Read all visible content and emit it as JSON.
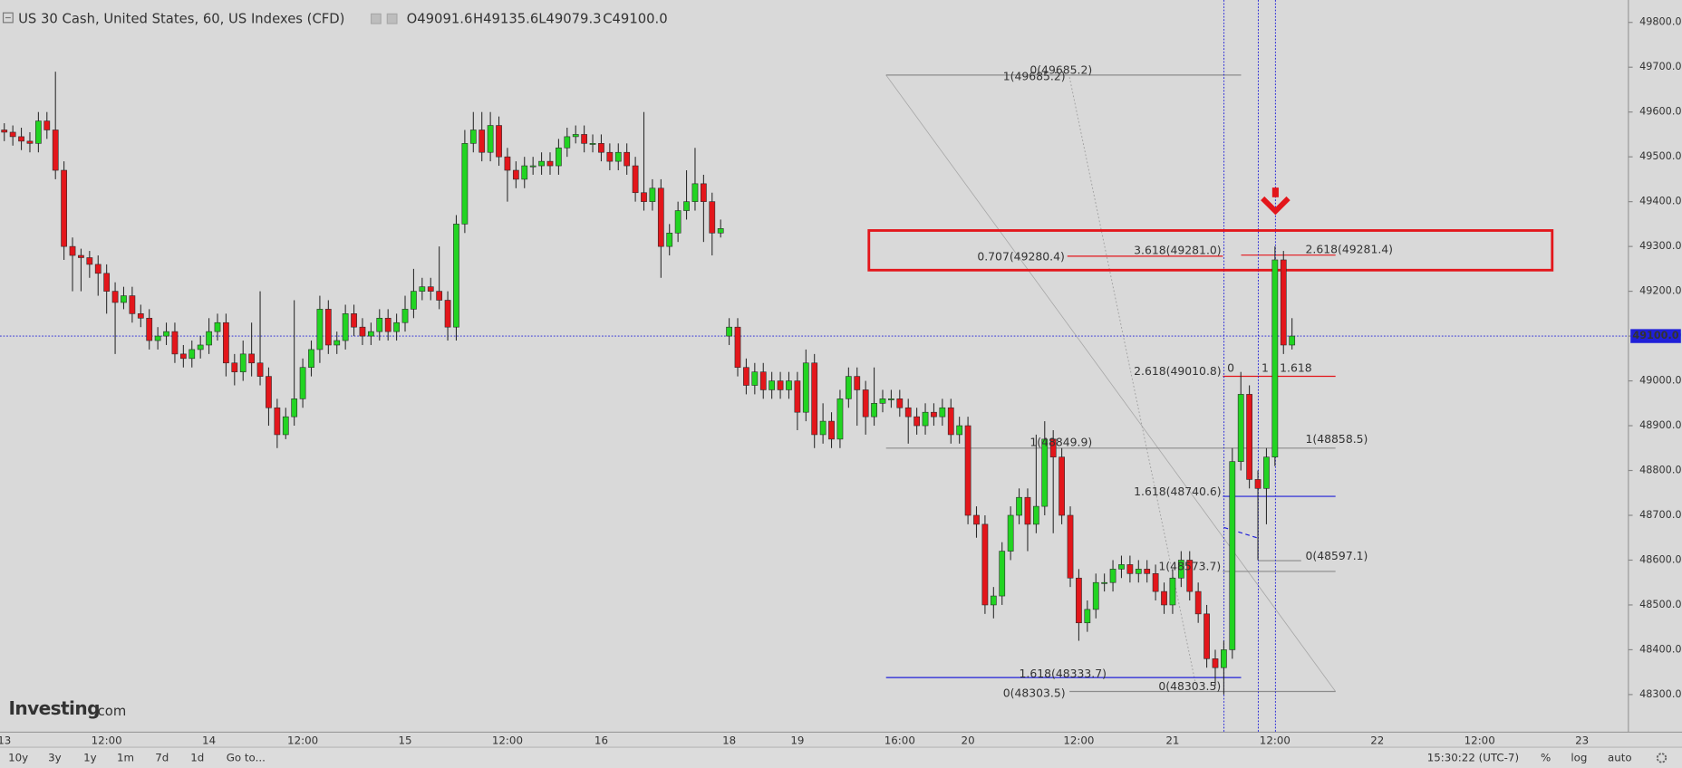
{
  "header": {
    "title": "US 30 Cash, United States, 60, US Indexes (CFD)",
    "ohlc": [
      "O49091.6",
      "H49135.6",
      "L49079.3",
      "C49100.0"
    ]
  },
  "logo": {
    "name": "Investing",
    "suffix": ".com"
  },
  "toolbar": {
    "ranges": [
      "10y",
      "3y",
      "1y",
      "1m",
      "7d",
      "1d"
    ],
    "goto": "Go to...",
    "time": "15:30:22 (UTC-7)",
    "options": [
      "%",
      "log",
      "auto"
    ]
  },
  "chart_data": {
    "type": "candlestick",
    "up_color": "#22d422",
    "down_color": "#e3161b",
    "categories": [
      "13",
      null,
      null,
      null,
      null,
      null,
      null,
      null,
      null,
      null,
      null,
      null,
      "12:00",
      null,
      null,
      null,
      null,
      null,
      null,
      null,
      null,
      null,
      null,
      null,
      "14",
      null,
      null,
      null,
      null,
      null,
      null,
      null,
      null,
      null,
      null,
      "12:00",
      null,
      null,
      null,
      null,
      null,
      null,
      null,
      null,
      null,
      null,
      null,
      "15",
      null,
      null,
      null,
      null,
      null,
      null,
      null,
      null,
      null,
      null,
      null,
      "12:00",
      null,
      null,
      null,
      null,
      null,
      null,
      null,
      null,
      null,
      null,
      "16",
      null,
      null,
      null,
      null,
      null,
      null,
      null,
      null,
      null,
      null,
      null,
      null,
      null,
      null,
      "18",
      null,
      null,
      null,
      null,
      null,
      null,
      null,
      "19",
      null,
      null,
      null,
      null,
      null,
      null,
      null,
      null,
      null,
      null,
      null,
      "16:00",
      null,
      null,
      null,
      null,
      null,
      null,
      null,
      "20",
      null,
      null,
      null,
      null,
      null,
      null,
      null,
      null,
      null,
      null,
      null,
      null,
      "12:00",
      null,
      null,
      null,
      null,
      null,
      null,
      null,
      null,
      null,
      null,
      "21",
      null,
      null,
      null,
      null,
      null,
      null,
      null,
      null,
      null,
      null,
      null,
      "12:00",
      null,
      null,
      null,
      null,
      null,
      null,
      null,
      null,
      null,
      null,
      null,
      "22",
      null,
      null,
      null,
      null,
      null,
      null,
      null,
      null,
      null,
      null,
      null,
      "12:00",
      null,
      null,
      null,
      null,
      null,
      null,
      null,
      null,
      null,
      null,
      null,
      "23"
    ],
    "open": [
      49560,
      49555,
      49545,
      49535,
      49530,
      49580,
      49560,
      49470,
      49300,
      49280,
      49275,
      49260,
      49240,
      49200,
      49175,
      49190,
      49150,
      49140,
      49090,
      49100,
      49110,
      49060,
      49050,
      49070,
      49080,
      49110,
      49130,
      49040,
      49020,
      49060,
      49040,
      49010,
      48940,
      48880,
      48920,
      48960,
      49030,
      49070,
      49160,
      49080,
      49090,
      49150,
      49120,
      49100,
      49110,
      49140,
      49110,
      49130,
      49160,
      49200,
      49210,
      49200,
      49180,
      49120,
      49350,
      49530,
      49560,
      49510,
      49570,
      49500,
      49470,
      49450,
      49480,
      49480,
      49490,
      49480,
      49520,
      49545,
      49550,
      49530,
      49530,
      49510,
      49490,
      49510,
      49480,
      49420,
      49400,
      49430,
      49300,
      49330,
      49380,
      49400,
      49440,
      49400,
      49330,
      49100,
      49120,
      49030,
      48990,
      49020,
      48980,
      49000,
      48980,
      49000,
      48930,
      49040,
      48880,
      48910,
      48870,
      48960,
      49010,
      48980,
      48920,
      48950,
      48960,
      48960,
      48940,
      48920,
      48900,
      48930,
      48920,
      48940,
      48880,
      48900,
      48700,
      48680,
      48500,
      48520,
      48620,
      48700,
      48740,
      48680,
      48720,
      48870,
      48830,
      48700,
      48560,
      48460,
      48490,
      48550,
      48550,
      48580,
      48590,
      48570,
      48580,
      48570,
      48530,
      48500,
      48560,
      48600,
      48530,
      48480,
      48380,
      48360,
      48400,
      48820,
      48970,
      48780,
      48760,
      48830,
      49270,
      49080,
      null,
      null,
      null,
      null,
      null,
      null,
      null,
      null,
      null,
      null,
      null,
      null,
      null,
      null,
      null,
      null,
      null,
      null,
      null,
      null,
      null,
      null,
      null,
      null,
      null,
      null,
      null,
      null,
      null,
      null,
      null,
      null,
      null,
      null
    ],
    "high": [
      49575,
      49570,
      49565,
      49555,
      49600,
      49600,
      49690,
      49490,
      49320,
      49295,
      49290,
      49280,
      49260,
      49220,
      49210,
      49210,
      49170,
      49160,
      49120,
      49130,
      49130,
      49080,
      49090,
      49100,
      49140,
      49150,
      49150,
      49060,
      49090,
      49130,
      49200,
      49030,
      48960,
      48940,
      49180,
      49050,
      49090,
      49190,
      49180,
      49110,
      49170,
      49170,
      49140,
      49130,
      49160,
      49160,
      49150,
      49190,
      49250,
      49230,
      49230,
      49300,
      49200,
      49370,
      49560,
      49600,
      49600,
      49600,
      49590,
      49520,
      49490,
      49500,
      49500,
      49510,
      49510,
      49540,
      49565,
      49570,
      49570,
      49550,
      49550,
      49530,
      49530,
      49530,
      49500,
      49600,
      49450,
      49450,
      49350,
      49400,
      49470,
      49520,
      49460,
      49420,
      49360,
      49140,
      49140,
      49050,
      49040,
      49040,
      49020,
      49020,
      49020,
      49020,
      49070,
      49060,
      48950,
      48930,
      48980,
      49030,
      49030,
      49000,
      49030,
      48980,
      48980,
      48980,
      48960,
      48940,
      48950,
      48950,
      48960,
      48960,
      48920,
      48920,
      48720,
      48700,
      48540,
      48640,
      48720,
      48760,
      48760,
      48880,
      48910,
      48890,
      48850,
      48720,
      48580,
      48510,
      48570,
      48570,
      48600,
      48610,
      48610,
      48600,
      48600,
      48590,
      48550,
      48580,
      48620,
      48620,
      48550,
      48500,
      48400,
      48420,
      48850,
      49020,
      48990,
      48800,
      48850,
      49300,
      49290,
      49140,
      null,
      null,
      null,
      null,
      null,
      null,
      null,
      null,
      null,
      null,
      null,
      null,
      null,
      null,
      null,
      null,
      null,
      null,
      null,
      null,
      null,
      null,
      null,
      null,
      null,
      null,
      null,
      null,
      null,
      null,
      null,
      null,
      null,
      null
    ],
    "low": [
      49535,
      49525,
      49515,
      49510,
      49510,
      49540,
      49450,
      49270,
      49200,
      49200,
      49230,
      49190,
      49150,
      49060,
      49160,
      49130,
      49120,
      49070,
      49070,
      49080,
      49040,
      49030,
      49030,
      49050,
      49060,
      49090,
      49010,
      48990,
      49000,
      49010,
      48990,
      48900,
      48850,
      48870,
      48900,
      48940,
      49010,
      49040,
      49060,
      49060,
      49070,
      49100,
      49080,
      49080,
      49090,
      49090,
      49090,
      49110,
      49140,
      49180,
      49180,
      49160,
      49090,
      49090,
      49330,
      49510,
      49490,
      49490,
      49480,
      49400,
      49430,
      49430,
      49460,
      49460,
      49460,
      49460,
      49500,
      49530,
      49510,
      49510,
      49490,
      49470,
      49470,
      49460,
      49400,
      49380,
      49380,
      49230,
      49280,
      49310,
      49360,
      49380,
      49310,
      49280,
      49320,
      49080,
      49010,
      48970,
      48970,
      48960,
      48960,
      48960,
      48960,
      48890,
      48910,
      48850,
      48860,
      48850,
      48850,
      48940,
      48900,
      48880,
      48900,
      48930,
      48940,
      48920,
      48860,
      48880,
      48880,
      48900,
      48900,
      48860,
      48860,
      48680,
      48650,
      48480,
      48470,
      48500,
      48600,
      48680,
      48620,
      48660,
      48700,
      48660,
      48680,
      48540,
      48420,
      48440,
      48470,
      48530,
      48530,
      48560,
      48550,
      48550,
      48550,
      48510,
      48480,
      48480,
      48540,
      48510,
      48460,
      48360,
      48320,
      48300,
      48380,
      48800,
      48760,
      48600,
      48680,
      48810,
      49060,
      49070,
      null,
      null,
      null,
      null,
      null,
      null,
      null,
      null,
      null,
      null,
      null,
      null,
      null,
      null,
      null,
      null,
      null,
      null,
      null,
      null,
      null,
      null,
      null,
      null,
      null,
      null,
      null,
      null,
      null,
      null,
      null,
      null,
      null,
      null
    ],
    "close": [
      49555,
      49545,
      49535,
      49530,
      49580,
      49560,
      49470,
      49300,
      49280,
      49275,
      49260,
      49240,
      49200,
      49175,
      49190,
      49150,
      49140,
      49090,
      49100,
      49110,
      49060,
      49050,
      49070,
      49080,
      49110,
      49130,
      49040,
      49020,
      49060,
      49040,
      49010,
      48940,
      48880,
      48920,
      48960,
      49030,
      49070,
      49160,
      49080,
      49090,
      49150,
      49120,
      49100,
      49110,
      49140,
      49110,
      49130,
      49160,
      49200,
      49210,
      49200,
      49180,
      49120,
      49350,
      49530,
      49560,
      49510,
      49570,
      49500,
      49470,
      49450,
      49480,
      49480,
      49490,
      49480,
      49520,
      49545,
      49550,
      49530,
      49530,
      49510,
      49490,
      49510,
      49480,
      49420,
      49400,
      49430,
      49300,
      49330,
      49380,
      49400,
      49440,
      49400,
      49330,
      49340,
      49120,
      49030,
      48990,
      49020,
      48980,
      49000,
      48980,
      49000,
      48930,
      49040,
      48880,
      48910,
      48870,
      48960,
      49010,
      48980,
      48920,
      48950,
      48960,
      48960,
      48940,
      48920,
      48900,
      48930,
      48920,
      48940,
      48880,
      48900,
      48700,
      48680,
      48500,
      48520,
      48620,
      48700,
      48740,
      48680,
      48720,
      48870,
      48830,
      48700,
      48560,
      48460,
      48490,
      48550,
      48550,
      48580,
      48590,
      48570,
      48580,
      48570,
      48530,
      48500,
      48560,
      48600,
      48530,
      48480,
      48380,
      48360,
      48400,
      48820,
      48970,
      48780,
      48760,
      48830,
      49270,
      49080,
      49100,
      null,
      null,
      null,
      null,
      null,
      null,
      null,
      null,
      null,
      null,
      null,
      null,
      null,
      null,
      null,
      null,
      null,
      null,
      null,
      null,
      null,
      null,
      null,
      null,
      null,
      null,
      null,
      null,
      null,
      null,
      null,
      null,
      null,
      null
    ],
    "ylim": [
      48216,
      49850
    ],
    "yticks": [
      {
        "value": 48300,
        "label": "48300.0"
      },
      {
        "value": 48400,
        "label": "48400.0"
      },
      {
        "value": 48500,
        "label": "48500.0"
      },
      {
        "value": 48600,
        "label": "48600.0"
      },
      {
        "value": 48700,
        "label": "48700.0"
      },
      {
        "value": 48800,
        "label": "48800.0"
      },
      {
        "value": 48900,
        "label": "48900.0"
      },
      {
        "value": 49000,
        "label": "49000.0"
      },
      {
        "value": 49100,
        "label": "49100.0"
      },
      {
        "value": 49200,
        "label": "49200.0"
      },
      {
        "value": 49300,
        "label": "49300.0"
      },
      {
        "value": 49400,
        "label": "49400.0"
      },
      {
        "value": 49500,
        "label": "49500.0"
      },
      {
        "value": 49600,
        "label": "49600.0"
      },
      {
        "value": 49700,
        "label": "49700.0"
      },
      {
        "value": 49800,
        "label": "49800.0"
      }
    ],
    "grid": false,
    "last_price": {
      "value": 49100,
      "label": "49100.0",
      "color": "#1f1fd8"
    },
    "annotations": [
      {
        "text": "0(49685.2)",
        "color": "#8a8a8a"
      },
      {
        "text": "1(49685.2)",
        "color": "#8a8a8a"
      },
      {
        "text": "0.707(49280.4)",
        "color": "#e3161b"
      },
      {
        "text": "3.618(49281.0)",
        "color": "#e3161b"
      },
      {
        "text": "2.618(49281.4)",
        "color": "#e3161b"
      },
      {
        "text": "2.618(49010.8)",
        "color": "#e3161b"
      },
      {
        "text": "0",
        "color": "#1f1fd8"
      },
      {
        "text": "1",
        "color": "#1f1fd8"
      },
      {
        "text": "1.618",
        "color": "#1f1fd8"
      },
      {
        "text": "1(48849.9)",
        "color": "#8a8a8a"
      },
      {
        "text": "1(48858.5)",
        "color": "#8a8a8a"
      },
      {
        "text": "1.618(48740.6)",
        "color": "#1f1fd8"
      },
      {
        "text": "0(48597.1)",
        "color": "#8a8a8a"
      },
      {
        "text": "1(48573.7)",
        "color": "#8a8a8a"
      },
      {
        "text": "1.618(48333.7)",
        "color": "#1f1fd8"
      },
      {
        "text": "0(48303.5)",
        "color": "#8a8a8a"
      },
      {
        "text": "0(48303.5)",
        "color": "#8a8a8a"
      }
    ]
  }
}
